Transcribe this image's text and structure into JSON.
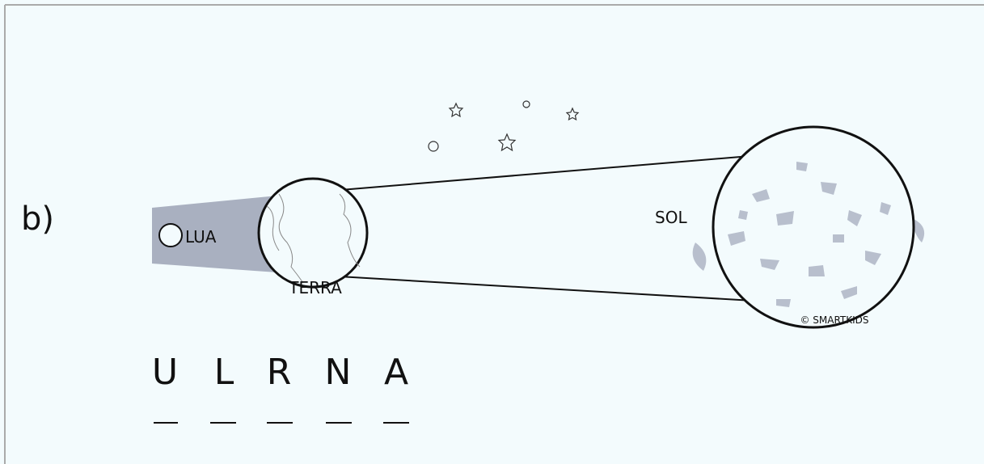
{
  "label": "b)",
  "bodies": {
    "moon": "LUA",
    "earth": "TERRA",
    "sun": "SOL"
  },
  "credit": "© SMARTKIDS",
  "letters": [
    "U",
    "L",
    "R",
    "N",
    "A"
  ]
}
